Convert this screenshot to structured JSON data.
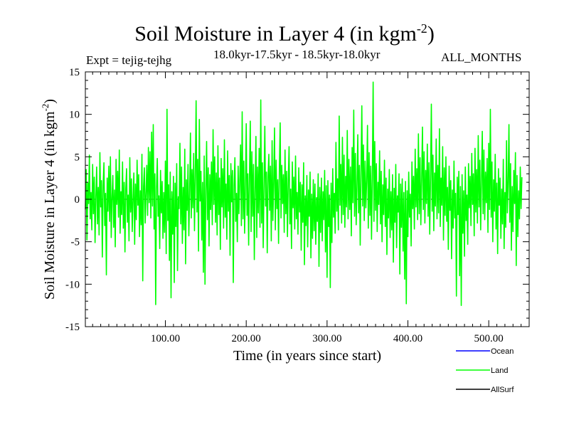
{
  "chart_data": {
    "type": "line",
    "title": "Soil Moisture in Layer 4 (in kgm",
    "title_sup": "-2",
    "title_close": ")",
    "expt_label": "Expt = tejig-tejhg",
    "subtitle": "18.0kyr-17.5kyr - 18.5kyr-18.0kyr",
    "months_label": "ALL_MONTHS",
    "xlabel": "Time (in years since start)",
    "ylabel": "Soil Moisture in Layer 4 (in kgm",
    "ylabel_sup": "-2",
    "ylabel_close": ")",
    "xlim": [
      1,
      550
    ],
    "ylim": [
      -15,
      15
    ],
    "x_ticks": [
      100,
      200,
      300,
      400,
      500
    ],
    "x_tick_labels": [
      "100.00",
      "200.00",
      "300.00",
      "400.00",
      "500.00"
    ],
    "y_ticks": [
      15,
      10,
      5,
      0,
      -5,
      -10,
      -15
    ],
    "y_tick_labels": [
      "15",
      "10",
      "5",
      "0",
      "-5",
      "-10",
      "-15"
    ],
    "zero_line": true,
    "legend_position": "bottom-right",
    "series": [
      {
        "name": "Ocean",
        "color": "#0000ff",
        "values": []
      },
      {
        "name": "Land",
        "color": "#00ff00",
        "x_start": 1,
        "x_step": 1,
        "values": [
          -1.2,
          3.5,
          -4.8,
          1.9,
          -0.5,
          5.2,
          -2.3,
          0.8,
          -3.6,
          4.1,
          -1.7,
          2.6,
          -5.1,
          0.3,
          3.8,
          -2.9,
          1.4,
          -4.2,
          5.5,
          -0.9,
          2.2,
          -6.8,
          1.6,
          4.3,
          -3.1,
          0.7,
          -8.9,
          2.5,
          -1.4,
          3.9,
          -2.6,
          5.0,
          -4.5,
          0.2,
          2.8,
          -3.3,
          1.1,
          -5.6,
          4.7,
          -0.6,
          3.3,
          -2.1,
          5.8,
          -4.0,
          0.9,
          -1.8,
          4.4,
          -3.4,
          2.0,
          -6.2,
          1.3,
          3.6,
          -2.7,
          0.5,
          -4.9,
          4.9,
          -1.5,
          2.4,
          -3.8,
          0.1,
          3.1,
          -5.3,
          1.8,
          -2.4,
          4.6,
          -0.7,
          2.9,
          -4.4,
          1.0,
          -3.0,
          5.3,
          -9.6,
          1.5,
          3.7,
          -2.8,
          0.6,
          4.0,
          -1.9,
          6.1,
          -0.4,
          5.6,
          -2.2,
          7.9,
          -0.8,
          8.8,
          -3.5,
          3.0,
          -12.4,
          1.2,
          4.8,
          -2.0,
          0.4,
          -5.8,
          3.4,
          -1.6,
          2.1,
          -4.6,
          0.8,
          -3.9,
          4.5,
          -6.4,
          10.6,
          -2.5,
          1.7,
          -7.2,
          3.2,
          -11.6,
          0.9,
          -4.1,
          2.7,
          -9.8,
          1.9,
          -3.2,
          4.2,
          -8.4,
          0.3,
          -1.1,
          6.6,
          -2.9,
          3.8,
          -5.2,
          1.4,
          -3.6,
          5.9,
          -7.6,
          2.3,
          -1.3,
          4.1,
          -4.3,
          0.6,
          7.8,
          -2.2,
          3.5,
          -1.0,
          5.4,
          -3.7,
          2.6,
          11.6,
          -1.5,
          4.7,
          -6.1,
          9.4,
          -0.2,
          3.3,
          -4.8,
          2.0,
          -8.6,
          5.1,
          -10.0,
          1.1,
          6.8,
          -2.4,
          3.7,
          -5.5,
          2.9,
          -1.2,
          4.4,
          -3.0,
          8.2,
          -0.6,
          5.0,
          -2.7,
          3.1,
          -4.2,
          6.3,
          -1.8,
          2.5,
          -5.9,
          4.8,
          -0.9,
          3.6,
          -3.4,
          7.0,
          -2.1,
          1.8,
          -4.7,
          5.7,
          -1.4,
          2.8,
          -6.6,
          4.2,
          -0.3,
          3.4,
          -9.8,
          1.6,
          4.9,
          -2.6,
          0.7,
          -5.0,
          3.9,
          -1.7,
          2.2,
          6.4,
          -3.1,
          10.3,
          -2.3,
          4.5,
          -4.0,
          1.3,
          8.9,
          -1.9,
          3.0,
          -5.4,
          2.4,
          9.2,
          -3.8,
          5.6,
          -2.0,
          4.1,
          -7.1,
          1.0,
          7.4,
          -4.5,
          3.8,
          -1.6,
          6.0,
          -3.3,
          11.7,
          -2.8,
          4.3,
          -5.7,
          1.5,
          8.6,
          -0.8,
          3.2,
          -6.3,
          2.7,
          5.3,
          -1.3,
          3.9,
          -4.9,
          6.9,
          -2.5,
          1.9,
          8.4,
          -3.6,
          4.6,
          -1.1,
          2.3,
          -5.2,
          3.5,
          9.0,
          -2.2,
          4.0,
          -0.5,
          2.9,
          -3.9,
          5.8,
          -1.7,
          3.3,
          -4.4,
          2.1,
          6.2,
          -2.9,
          1.2,
          -5.8,
          4.4,
          -1.0,
          2.6,
          -3.5,
          5.1,
          -2.3,
          0.8,
          -4.1,
          3.7,
          -1.5,
          2.0,
          -6.0,
          1.7,
          -2.7,
          4.3,
          -7.7,
          0.4,
          -3.1,
          2.8,
          -5.6,
          1.1,
          -2.0,
          3.2,
          -6.9,
          0.6,
          -4.6,
          2.3,
          -3.7,
          1.8,
          -5.3,
          0.2,
          -2.6,
          3.0,
          -7.9,
          1.4,
          -3.9,
          2.5,
          -4.9,
          0.9,
          -2.4,
          3.4,
          -6.2,
          1.6,
          -9.2,
          2.2,
          -3.2,
          0.5,
          -10.4,
          1.9,
          -5.1,
          3.6,
          -2.1,
          0.7,
          -4.0,
          6.7,
          -1.4,
          2.4,
          -3.6,
          9.8,
          -0.7,
          4.1,
          -2.8,
          7.3,
          -1.8,
          5.2,
          -3.3,
          2.7,
          -0.9,
          8.1,
          -2.3,
          4.7,
          -1.2,
          3.8,
          -4.3,
          6.1,
          -0.4,
          10.5,
          -2.0,
          5.4,
          -3.0,
          1.5,
          7.6,
          -1.6,
          4.0,
          -5.4,
          3.1,
          11.0,
          -0.8,
          6.4,
          -2.5,
          4.5,
          -1.0,
          2.2,
          8.7,
          -3.4,
          5.5,
          -1.9,
          3.9,
          -4.7,
          2.6,
          13.8,
          -2.6,
          6.8,
          -1.3,
          4.2,
          -3.8,
          2.0,
          -0.6,
          5.7,
          -2.9,
          3.3,
          -5.0,
          1.7,
          -1.8,
          4.6,
          -3.2,
          2.5,
          -6.5,
          1.2,
          -2.2,
          3.5,
          -4.5,
          0.9,
          -3.6,
          2.9,
          -7.4,
          1.3,
          -2.7,
          4.1,
          -5.7,
          0.4,
          -1.5,
          3.0,
          -8.8,
          1.8,
          -3.3,
          2.4,
          -6.1,
          0.8,
          -9.4,
          2.1,
          -12.3,
          1.0,
          -4.4,
          3.2,
          -2.1,
          0.6,
          -5.5,
          4.4,
          -1.1,
          2.7,
          -3.5,
          5.9,
          -0.9,
          3.6,
          -2.4,
          7.7,
          -1.7,
          4.9,
          -3.0,
          2.3,
          8.5,
          -1.2,
          5.6,
          -2.8,
          3.4,
          -0.5,
          6.5,
          -2.0,
          4.3,
          -4.1,
          2.8,
          11.2,
          -1.4,
          5.2,
          -3.7,
          3.1,
          -0.8,
          7.1,
          -2.3,
          4.0,
          -1.6,
          8.3,
          -3.2,
          2.5,
          -0.7,
          6.2,
          -4.8,
          3.7,
          -1.9,
          5.0,
          -2.6,
          1.4,
          -5.9,
          3.9,
          -1.3,
          2.2,
          -7.0,
          1.1,
          -3.4,
          4.5,
          -2.2,
          0.7,
          -11.4,
          2.6,
          -1.8,
          3.3,
          -9.0,
          1.5,
          -12.5,
          2.9,
          -4.0,
          1.0,
          -6.7,
          3.8,
          -2.5,
          0.5,
          -5.3,
          4.2,
          -1.0,
          2.7,
          -3.1,
          5.4,
          -0.6,
          3.0,
          -4.3,
          6.0,
          -1.5,
          3.5,
          -2.8,
          7.5,
          -0.9,
          4.6,
          -3.6,
          2.1,
          8.0,
          -1.7,
          5.8,
          -2.4,
          3.2,
          -0.4,
          4.8,
          -3.9,
          6.6,
          -1.2,
          10.6,
          -2.1,
          4.4,
          -5.0,
          2.3,
          -1.4,
          5.3,
          -3.5,
          1.9,
          -6.4,
          3.6,
          -0.7,
          2.5,
          -4.6,
          1.2,
          -2.9,
          4.7,
          -5.8,
          0.8,
          -3.3,
          6.9,
          -1.6,
          2.0,
          8.8,
          -2.7,
          4.2,
          -6.0,
          1.5,
          -3.8,
          3.4,
          -0.5,
          5.5,
          -7.8,
          2.8,
          -4.4,
          1.0,
          -2.3,
          3.8,
          -1.1,
          2.6
        ]
      },
      {
        "name": "AllSurf",
        "color": "#000000",
        "values": []
      }
    ]
  }
}
